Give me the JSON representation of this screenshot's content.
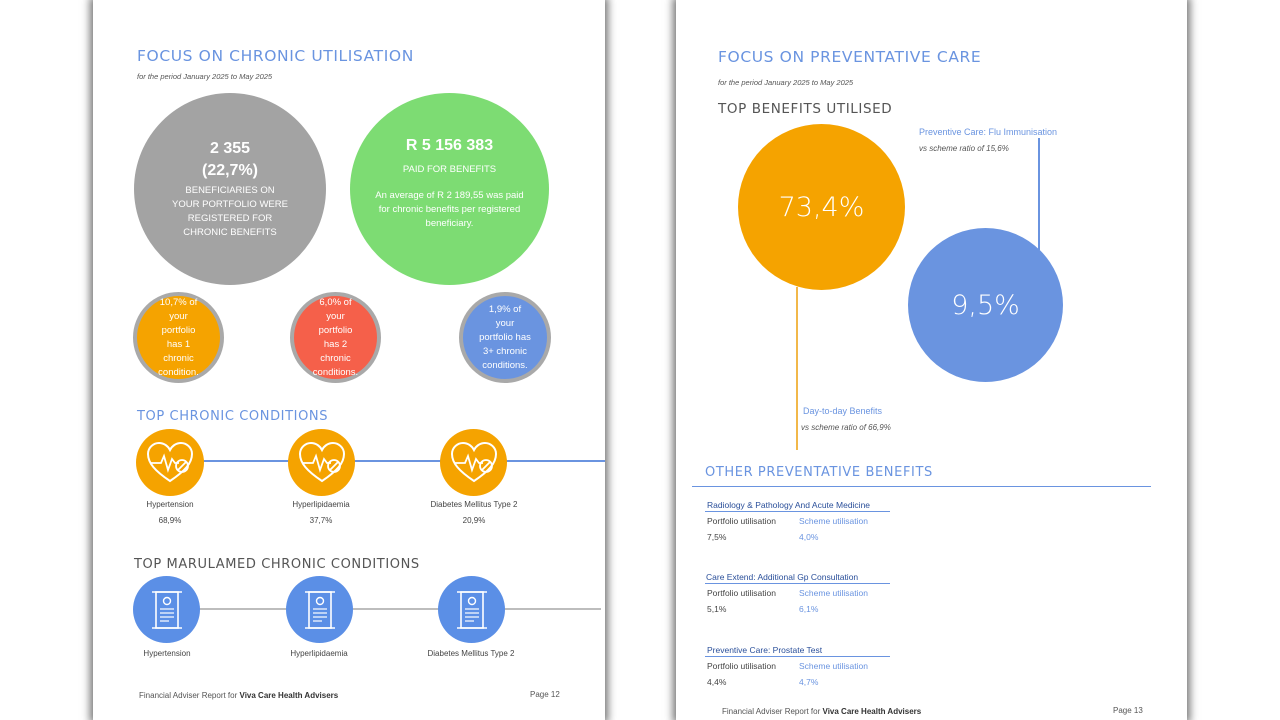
{
  "page12": {
    "title": "FOCUS ON CHRONIC UTILISATION",
    "period": "for the period January 2025 to May 2025",
    "beneficiaries": {
      "count": "2 355",
      "pct": "(22,7%)",
      "text": "BENEFICIARIES ON YOUR PORTFOLIO WERE REGISTERED FOR CHRONIC BENEFITS"
    },
    "paid": {
      "amount": "R 5 156 383",
      "label": "PAID FOR BENEFITS",
      "text": "An average of R 2 189,55 was paid for chronic benefits per registered beneficiary."
    },
    "portfolio_circles": [
      {
        "text": "10,7% of your portfolio has 1 chronic condition.",
        "color": "#f5a300"
      },
      {
        "text": "6,0% of your portfolio has 2 chronic conditions.",
        "color": "#f5604a"
      },
      {
        "text": "1,9% of your portfolio has 3+ chronic conditions.",
        "color": "#6a94e0"
      }
    ],
    "top_chronic_title": "TOP CHRONIC CONDITIONS",
    "top_chronic": [
      {
        "name": "Hypertension",
        "pct": "68,9%"
      },
      {
        "name": "Hyperlipidaemia",
        "pct": "37,7%"
      },
      {
        "name": "Diabetes Mellitus Type 2",
        "pct": "20,9%"
      }
    ],
    "top_marula_title": "TOP MARULAMED CHRONIC CONDITIONS",
    "top_marula": [
      {
        "name": "Hypertension"
      },
      {
        "name": "Hyperlipidaemia"
      },
      {
        "name": "Diabetes Mellitus Type 2"
      }
    ],
    "footer": {
      "prefix": "Financial Adviser Report for",
      "company": "Viva Care Health Advisers",
      "page": "Page 12"
    }
  },
  "page13": {
    "title": "FOCUS ON PREVENTATIVE CARE",
    "period": "for the period January 2025 to May 2025",
    "top_benefits_title": "TOP BENEFITS UTILISED",
    "day_to_day": {
      "value": "73,4%",
      "label": "Day-to-day Benefits",
      "ratio": "vs scheme ratio of 66,9%",
      "color": "#f5a300"
    },
    "flu": {
      "value": "9,5%",
      "label": "Preventive Care: Flu Immunisation",
      "ratio": "vs scheme ratio of 15,6%",
      "color": "#6a94e0"
    },
    "other_title": "OTHER PREVENTATIVE BENEFITS",
    "col_portfolio": "Portfolio utilisation",
    "col_scheme": "Scheme utilisation",
    "other": [
      {
        "name": "Radiology & Pathology And Acute Medicine",
        "portfolio": "7,5%",
        "scheme": "4,0%"
      },
      {
        "name": "Care Extend: Additional Gp Consultation",
        "portfolio": "5,1%",
        "scheme": "6,1%"
      },
      {
        "name": "Preventive Care: Prostate Test",
        "portfolio": "4,4%",
        "scheme": "4,7%"
      }
    ],
    "footer": {
      "prefix": "Financial Adviser Report for",
      "company": "Viva Care Health Advisers",
      "page": "Page 13"
    }
  }
}
